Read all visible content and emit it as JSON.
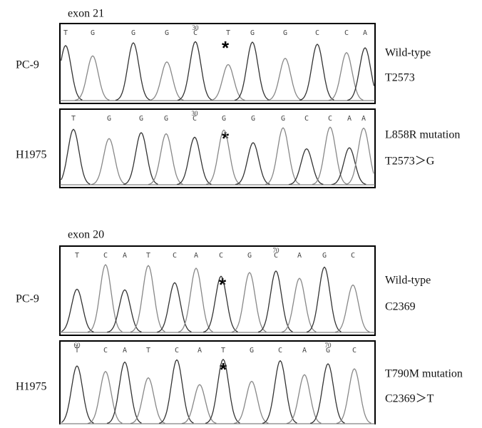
{
  "panels": [
    {
      "exon": "exon 21",
      "traces": [
        {
          "sample": "PC-9",
          "marker": "30",
          "asterisk": "*",
          "bases": [
            "T",
            "G",
            "G",
            "G",
            "C",
            "T",
            "G",
            "G",
            "C",
            "C",
            "A"
          ],
          "notes": [
            "Wild-type",
            "T2573"
          ]
        },
        {
          "sample": "H1975",
          "marker": "30",
          "asterisk": "*",
          "bases": [
            "T",
            "G",
            "G",
            "G",
            "C",
            "G",
            "G",
            "G",
            "C",
            "C",
            "A",
            "A"
          ],
          "notes": [
            "L858R mutation",
            "T2573＞G"
          ]
        }
      ]
    },
    {
      "exon": "exon 20",
      "traces": [
        {
          "sample": "PC-9",
          "marker": "70",
          "asterisk": "*",
          "bases": [
            "T",
            "C",
            "A",
            "T",
            "C",
            "A",
            "C",
            "G",
            "C",
            "A",
            "G",
            "C"
          ],
          "notes": [
            "Wild-type",
            "C2369"
          ]
        },
        {
          "sample": "H1975",
          "marker": "70",
          "marker2": "60",
          "asterisk": "*",
          "bases": [
            "T",
            "C",
            "A",
            "T",
            "C",
            "A",
            "T",
            "G",
            "C",
            "A",
            "G",
            "C"
          ],
          "notes": [
            "T790M mutation",
            "C2369＞T"
          ]
        }
      ]
    }
  ]
}
